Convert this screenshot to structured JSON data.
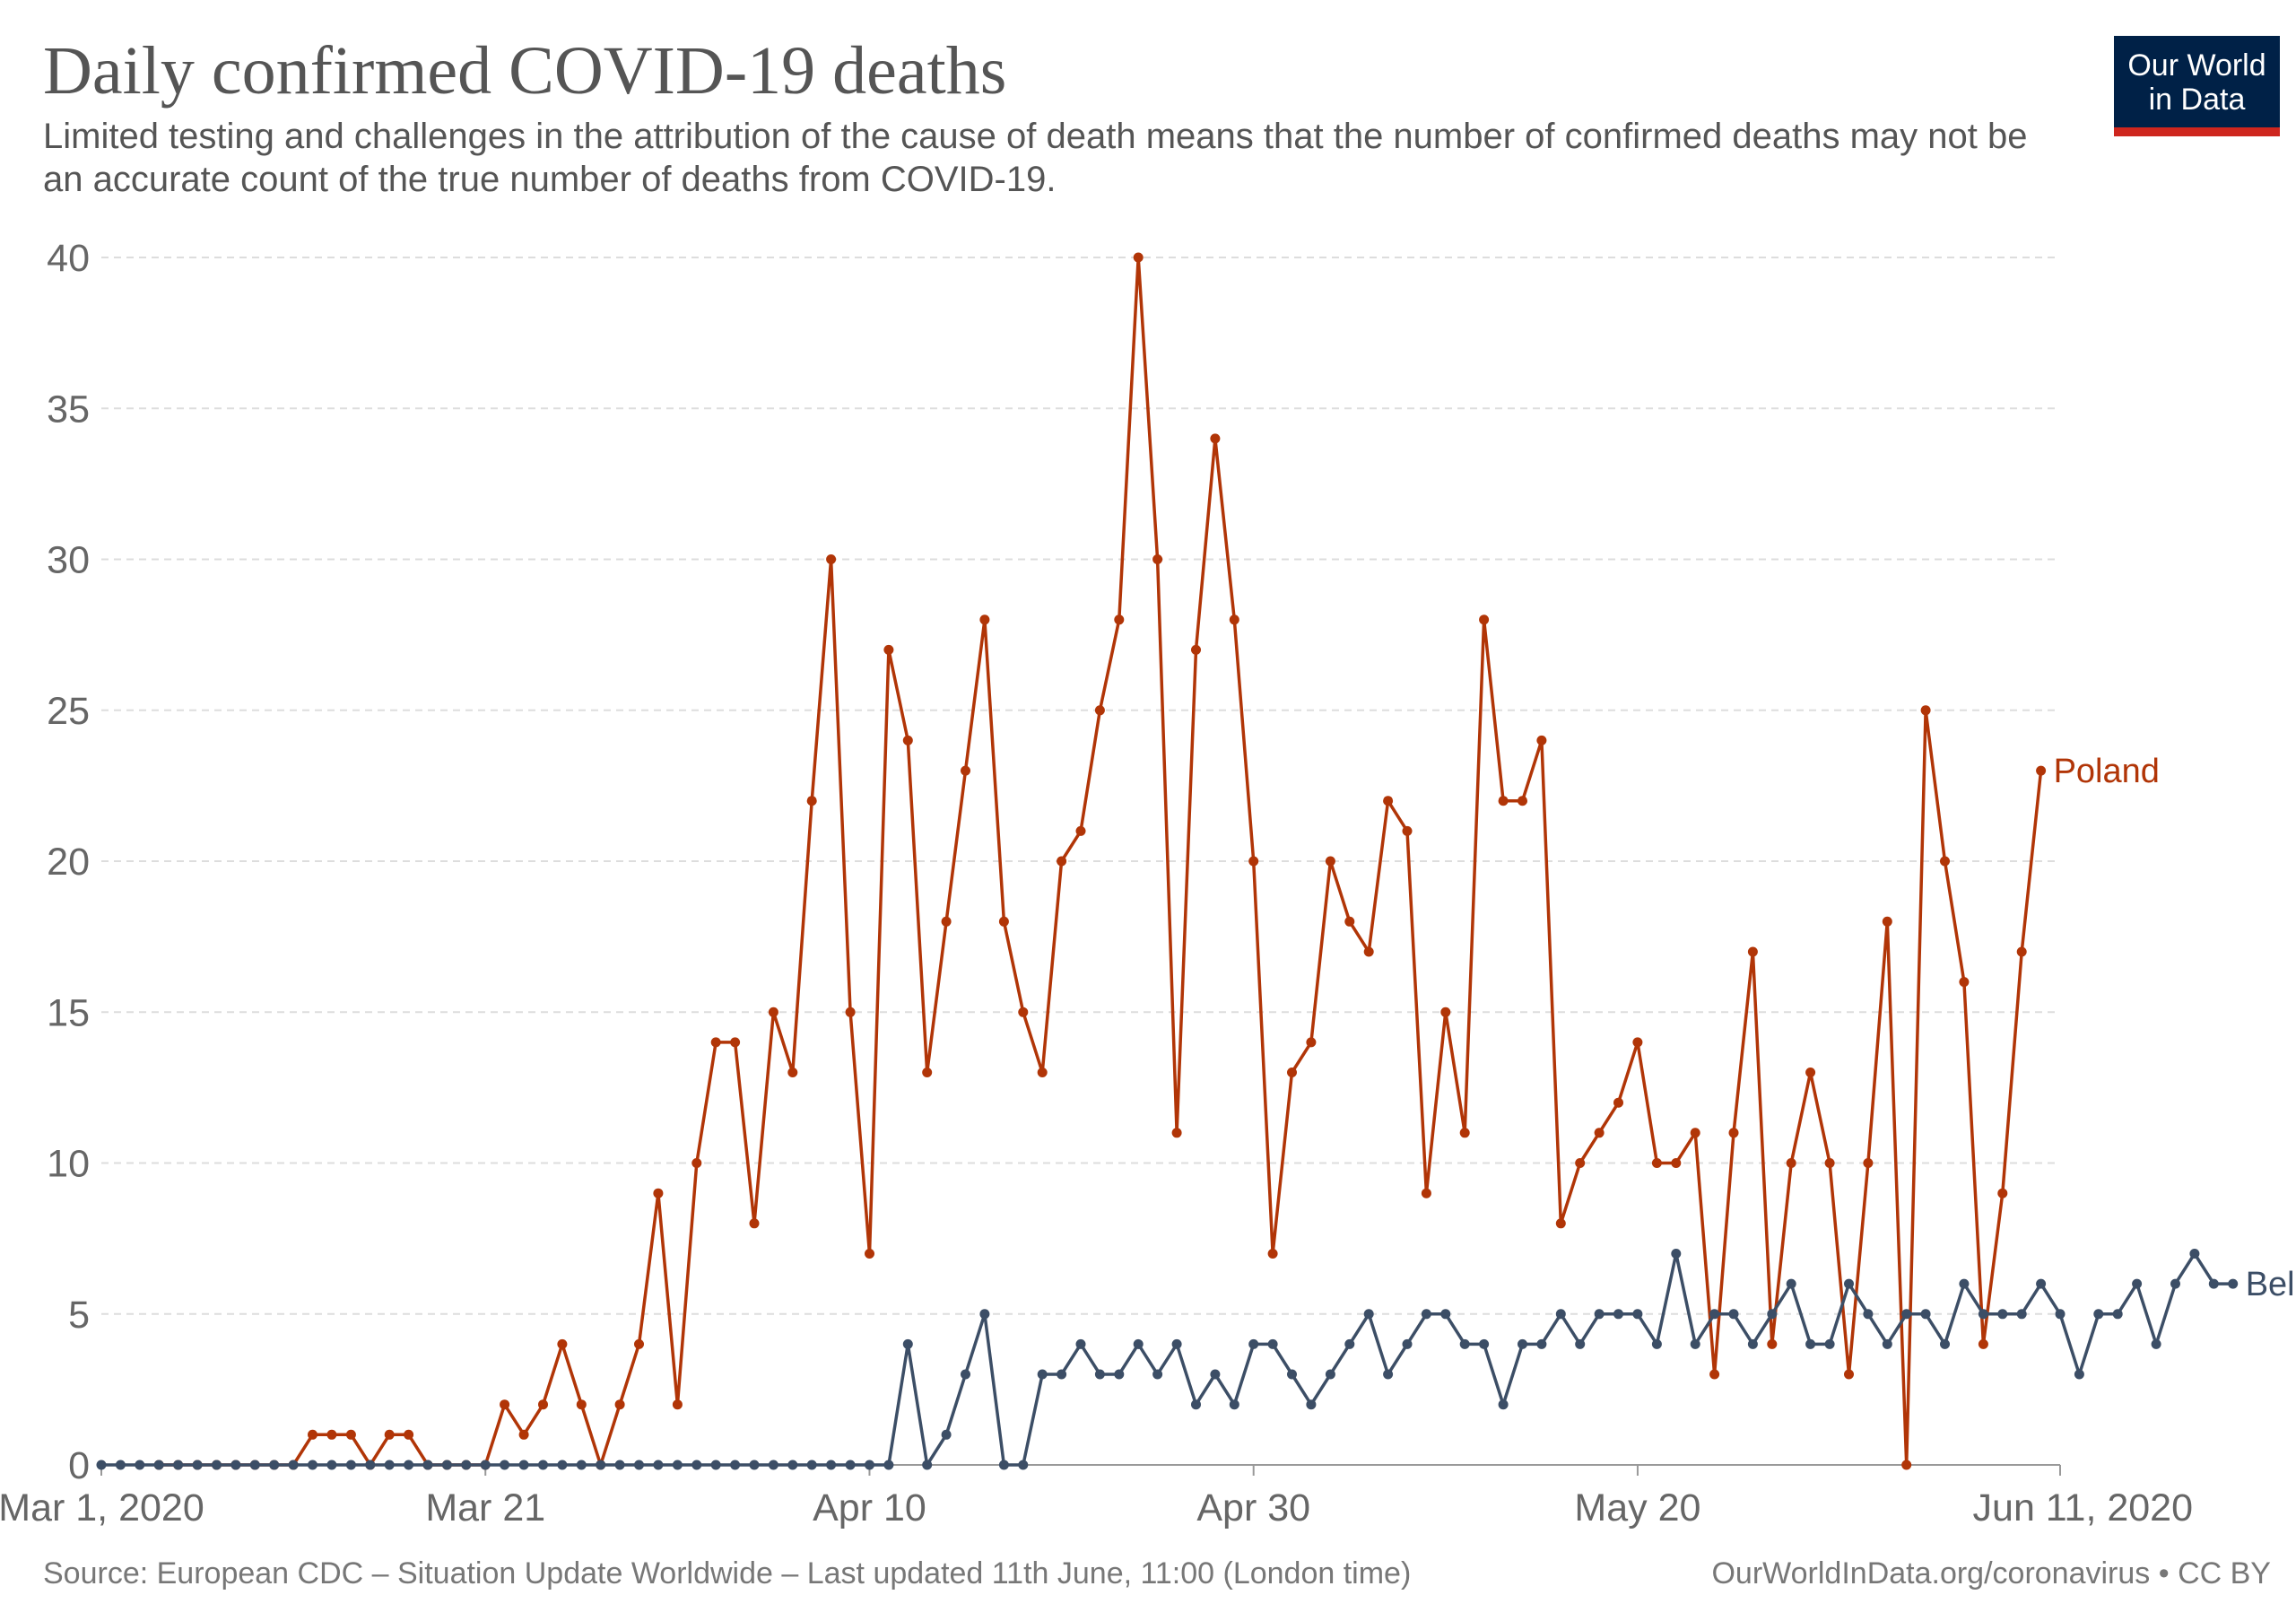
{
  "header": {
    "title": "Daily confirmed COVID-19 deaths",
    "subtitle": "Limited testing and challenges in the attribution of the cause of death means that the number of confirmed deaths may not be an accurate count of the true number of deaths from COVID-19."
  },
  "logo": {
    "line1": "Our World",
    "line2": "in Data",
    "background": "#002147",
    "accent": "#ce261e"
  },
  "footer": {
    "source": "Source: European CDC – Situation Update Worldwide – Last updated 11th June, 11:00 (London time)",
    "link": "OurWorldInData.org/coronavirus • CC BY"
  },
  "chart_data": {
    "type": "line",
    "x_start": "2020-03-01",
    "x_end": "2020-06-11",
    "ylim": [
      0,
      40
    ],
    "yticks": [
      0,
      5,
      10,
      15,
      20,
      25,
      30,
      35,
      40
    ],
    "xticks": [
      {
        "date": "2020-03-01",
        "label": "Mar 1, 2020"
      },
      {
        "date": "2020-03-21",
        "label": "Mar 21"
      },
      {
        "date": "2020-04-10",
        "label": "Apr 10"
      },
      {
        "date": "2020-04-30",
        "label": "Apr 30"
      },
      {
        "date": "2020-05-20",
        "label": "May 20"
      },
      {
        "date": "2020-06-11",
        "label": "Jun 11, 2020"
      }
    ],
    "grid": "horizontal dashed",
    "legend": "end-of-line labels",
    "series": [
      {
        "name": "Poland",
        "color": "#b13507",
        "start": "2020-03-04",
        "values": [
          0,
          0,
          0,
          0,
          0,
          0,
          0,
          0,
          1,
          1,
          1,
          0,
          1,
          1,
          0,
          0,
          0,
          0,
          2,
          1,
          2,
          4,
          2,
          0,
          2,
          4,
          9,
          2,
          10,
          14,
          14,
          8,
          15,
          13,
          22,
          30,
          15,
          7,
          27,
          24,
          13,
          18,
          23,
          28,
          18,
          15,
          13,
          20,
          21,
          25,
          28,
          40,
          30,
          11,
          27,
          34,
          28,
          20,
          7,
          13,
          14,
          20,
          18,
          17,
          22,
          21,
          9,
          15,
          11,
          28,
          22,
          22,
          24,
          8,
          10,
          11,
          12,
          14,
          10,
          10,
          11,
          3,
          11,
          17,
          4,
          10,
          13,
          10,
          3,
          10,
          18,
          0,
          25,
          20,
          16,
          4,
          9,
          17,
          23
        ]
      },
      {
        "name": "Belarus",
        "color": "#3c4e66",
        "start": "2020-03-01",
        "values": [
          0,
          0,
          0,
          0,
          0,
          0,
          0,
          0,
          0,
          0,
          0,
          0,
          0,
          0,
          0,
          0,
          0,
          0,
          0,
          0,
          0,
          0,
          0,
          0,
          0,
          0,
          0,
          0,
          0,
          0,
          0,
          0,
          0,
          0,
          0,
          0,
          0,
          0,
          0,
          0,
          0,
          0,
          4,
          0,
          1,
          3,
          5,
          0,
          0,
          3,
          3,
          4,
          3,
          3,
          4,
          3,
          4,
          2,
          3,
          2,
          4,
          4,
          3,
          2,
          3,
          4,
          5,
          3,
          4,
          5,
          5,
          4,
          4,
          2,
          4,
          4,
          5,
          4,
          5,
          5,
          5,
          4,
          7,
          4,
          5,
          5,
          4,
          5,
          6,
          4,
          4,
          6,
          5,
          4,
          5,
          5,
          4,
          6,
          5,
          5,
          5,
          6,
          5,
          3,
          5,
          5,
          6,
          4,
          6,
          7,
          6,
          6
        ]
      }
    ]
  }
}
